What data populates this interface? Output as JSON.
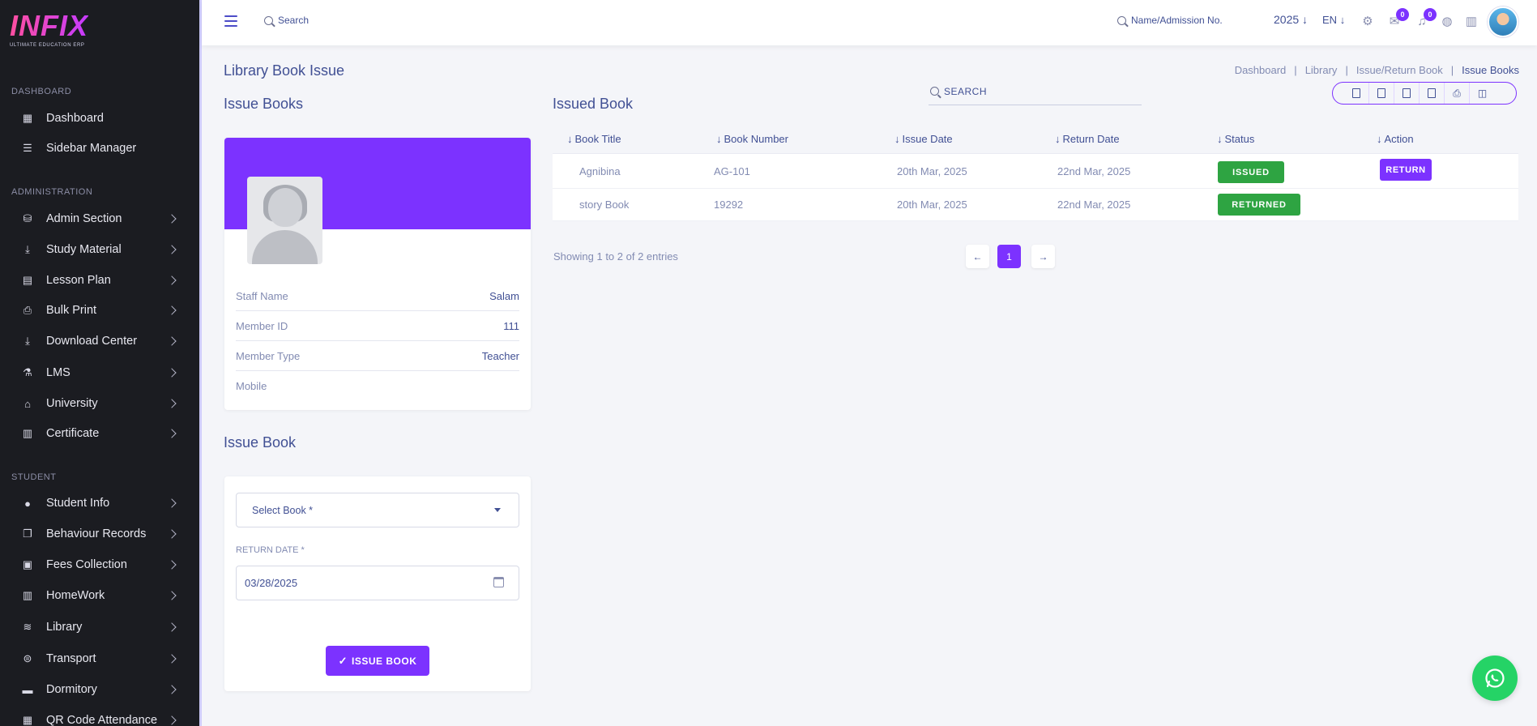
{
  "brand": {
    "logo": "INFIX",
    "tagline": "ULTIMATE EDUCATION ERP"
  },
  "sidebar": {
    "sections": [
      {
        "label": "DASHBOARD",
        "items": [
          {
            "label": "Dashboard",
            "icon": "grid-icon"
          },
          {
            "label": "Sidebar Manager",
            "icon": "menu-lines-icon"
          }
        ]
      },
      {
        "label": "ADMINISTRATION",
        "items": [
          {
            "label": "Admin Section",
            "icon": "admin-icon"
          },
          {
            "label": "Study Material",
            "icon": "download-icon"
          },
          {
            "label": "Lesson Plan",
            "icon": "calendar-icon"
          },
          {
            "label": "Bulk Print",
            "icon": "printer-icon"
          },
          {
            "label": "Download Center",
            "icon": "download-icon"
          },
          {
            "label": "LMS",
            "icon": "flask-icon"
          },
          {
            "label": "University",
            "icon": "bank-icon"
          },
          {
            "label": "Certificate",
            "icon": "book-icon"
          }
        ]
      },
      {
        "label": "STUDENT",
        "items": [
          {
            "label": "Student Info",
            "icon": "user-icon"
          },
          {
            "label": "Behaviour Records",
            "icon": "documents-icon"
          },
          {
            "label": "Fees Collection",
            "icon": "wallet-icon"
          },
          {
            "label": "HomeWork",
            "icon": "book-icon"
          },
          {
            "label": "Library",
            "icon": "library-icon"
          },
          {
            "label": "Transport",
            "icon": "bus-icon"
          },
          {
            "label": "Dormitory",
            "icon": "bed-icon"
          },
          {
            "label": "QR Code Attendance",
            "icon": "qr-icon"
          }
        ]
      }
    ]
  },
  "header": {
    "search_label": "Search",
    "search2_label": "Name/Admission No.",
    "year": "2025",
    "lang": "EN",
    "chat_badge": "0",
    "notif_badge": "0"
  },
  "page": {
    "title": "Library Book Issue",
    "breadcrumb": [
      "Dashboard",
      "Library",
      "Issue/Return Book",
      "Issue Books"
    ]
  },
  "profile": {
    "heading": "Issue Books",
    "rows": [
      {
        "key": "Staff Name",
        "value": "Salam"
      },
      {
        "key": "Member ID",
        "value": "111"
      },
      {
        "key": "Member Type",
        "value": "Teacher"
      },
      {
        "key": "Mobile",
        "value": ""
      }
    ]
  },
  "form": {
    "heading": "Issue Book",
    "select_placeholder": "Select Book *",
    "return_label": "RETURN DATE *",
    "return_value": "03/28/2025",
    "submit": "ISSUE BOOK"
  },
  "issued": {
    "heading": "Issued Book",
    "search_label": "SEARCH",
    "columns": [
      "Book Title",
      "Book Number",
      "Issue Date",
      "Return Date",
      "Status",
      "Action"
    ],
    "rows": [
      {
        "title": "Agnibina",
        "number": "AG-101",
        "issue": "20th Mar, 2025",
        "return": "22nd Mar, 2025",
        "status": "ISSUED",
        "action": "RETURN"
      },
      {
        "title": "story Book",
        "number": "19292",
        "issue": "20th Mar, 2025",
        "return": "22nd Mar, 2025",
        "status": "RETURNED",
        "action": ""
      }
    ],
    "entries": "Showing 1 to 2 of 2 entries",
    "page": "1"
  },
  "colors": {
    "accent": "#7c32ff",
    "success": "#2ea442",
    "sidebar": "#1b1c21",
    "whatsapp": "#25d366"
  }
}
